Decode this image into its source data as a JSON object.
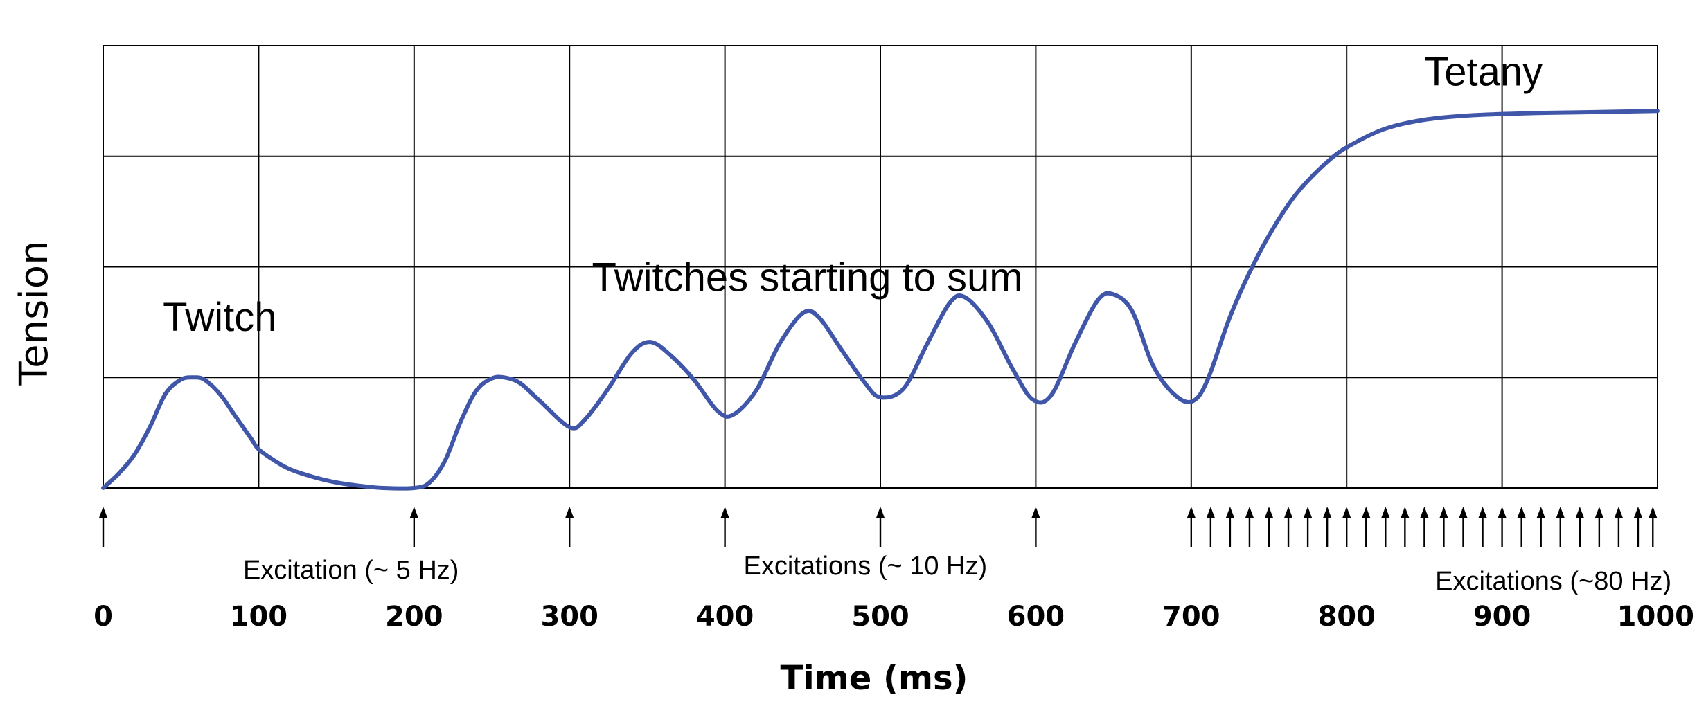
{
  "chart_data": {
    "type": "line",
    "title": "",
    "xlabel": "Time (ms)",
    "ylabel": "Tension",
    "xlim": [
      0,
      1000
    ],
    "ylim": [
      0,
      4
    ],
    "grid": true,
    "x_ticks": [
      0,
      100,
      200,
      300,
      400,
      500,
      600,
      700,
      800,
      900,
      1000
    ],
    "y_gridlines": [
      0,
      1,
      2,
      3,
      4
    ],
    "line_color": "#4056a8",
    "series": [
      {
        "points": [
          [
            0,
            0
          ],
          [
            10,
            0.13
          ],
          [
            20,
            0.3
          ],
          [
            30,
            0.55
          ],
          [
            40,
            0.85
          ],
          [
            50,
            0.98
          ],
          [
            58,
            1.0
          ],
          [
            65,
            0.98
          ],
          [
            75,
            0.85
          ],
          [
            85,
            0.65
          ],
          [
            95,
            0.45
          ],
          [
            100,
            0.35
          ],
          [
            110,
            0.25
          ],
          [
            120,
            0.17
          ],
          [
            135,
            0.1
          ],
          [
            150,
            0.05
          ],
          [
            165,
            0.02
          ],
          [
            180,
            0.0
          ],
          [
            200,
            0.0
          ],
          [
            210,
            0.05
          ],
          [
            220,
            0.25
          ],
          [
            230,
            0.6
          ],
          [
            240,
            0.88
          ],
          [
            250,
            0.99
          ],
          [
            258,
            1.0
          ],
          [
            268,
            0.95
          ],
          [
            280,
            0.8
          ],
          [
            300,
            0.55
          ],
          [
            310,
            0.62
          ],
          [
            325,
            0.9
          ],
          [
            340,
            1.22
          ],
          [
            352,
            1.32
          ],
          [
            365,
            1.2
          ],
          [
            380,
            0.98
          ],
          [
            395,
            0.7
          ],
          [
            405,
            0.66
          ],
          [
            420,
            0.88
          ],
          [
            435,
            1.3
          ],
          [
            450,
            1.58
          ],
          [
            460,
            1.55
          ],
          [
            475,
            1.25
          ],
          [
            490,
            0.95
          ],
          [
            500,
            0.82
          ],
          [
            515,
            0.9
          ],
          [
            530,
            1.3
          ],
          [
            545,
            1.68
          ],
          [
            555,
            1.72
          ],
          [
            570,
            1.48
          ],
          [
            585,
            1.08
          ],
          [
            598,
            0.8
          ],
          [
            610,
            0.84
          ],
          [
            625,
            1.3
          ],
          [
            640,
            1.7
          ],
          [
            650,
            1.75
          ],
          [
            662,
            1.6
          ],
          [
            675,
            1.12
          ],
          [
            688,
            0.86
          ],
          [
            700,
            0.78
          ],
          [
            710,
            0.96
          ],
          [
            725,
            1.55
          ],
          [
            740,
            2.02
          ],
          [
            755,
            2.4
          ],
          [
            770,
            2.7
          ],
          [
            790,
            2.98
          ],
          [
            805,
            3.12
          ],
          [
            825,
            3.25
          ],
          [
            850,
            3.33
          ],
          [
            880,
            3.37
          ],
          [
            920,
            3.39
          ],
          [
            960,
            3.4
          ],
          [
            1000,
            3.41
          ]
        ]
      }
    ],
    "annotations": [
      {
        "text": "Twitch",
        "x": 75,
        "y": 1.42
      },
      {
        "text": "Twitches starting to sum",
        "x": 453,
        "y": 1.78
      },
      {
        "text": "Tetany",
        "x": 888,
        "y": 3.64
      }
    ],
    "excitation_times": [
      0,
      200,
      300,
      400,
      500,
      600,
      700,
      712.5,
      725,
      737.5,
      750,
      762.5,
      775,
      787.5,
      800,
      812.5,
      825,
      837.5,
      850,
      862.5,
      875,
      887.5,
      900,
      912.5,
      925,
      937.5,
      950,
      962.5,
      975,
      987.5,
      997
    ],
    "excitation_labels": [
      {
        "text": "Excitation (~ 5  Hz)",
        "x": 90
      },
      {
        "text": "Excitations (~ 10 Hz)",
        "x": 412
      },
      {
        "text": "Excitations (~80 Hz)",
        "x": 857
      }
    ]
  }
}
